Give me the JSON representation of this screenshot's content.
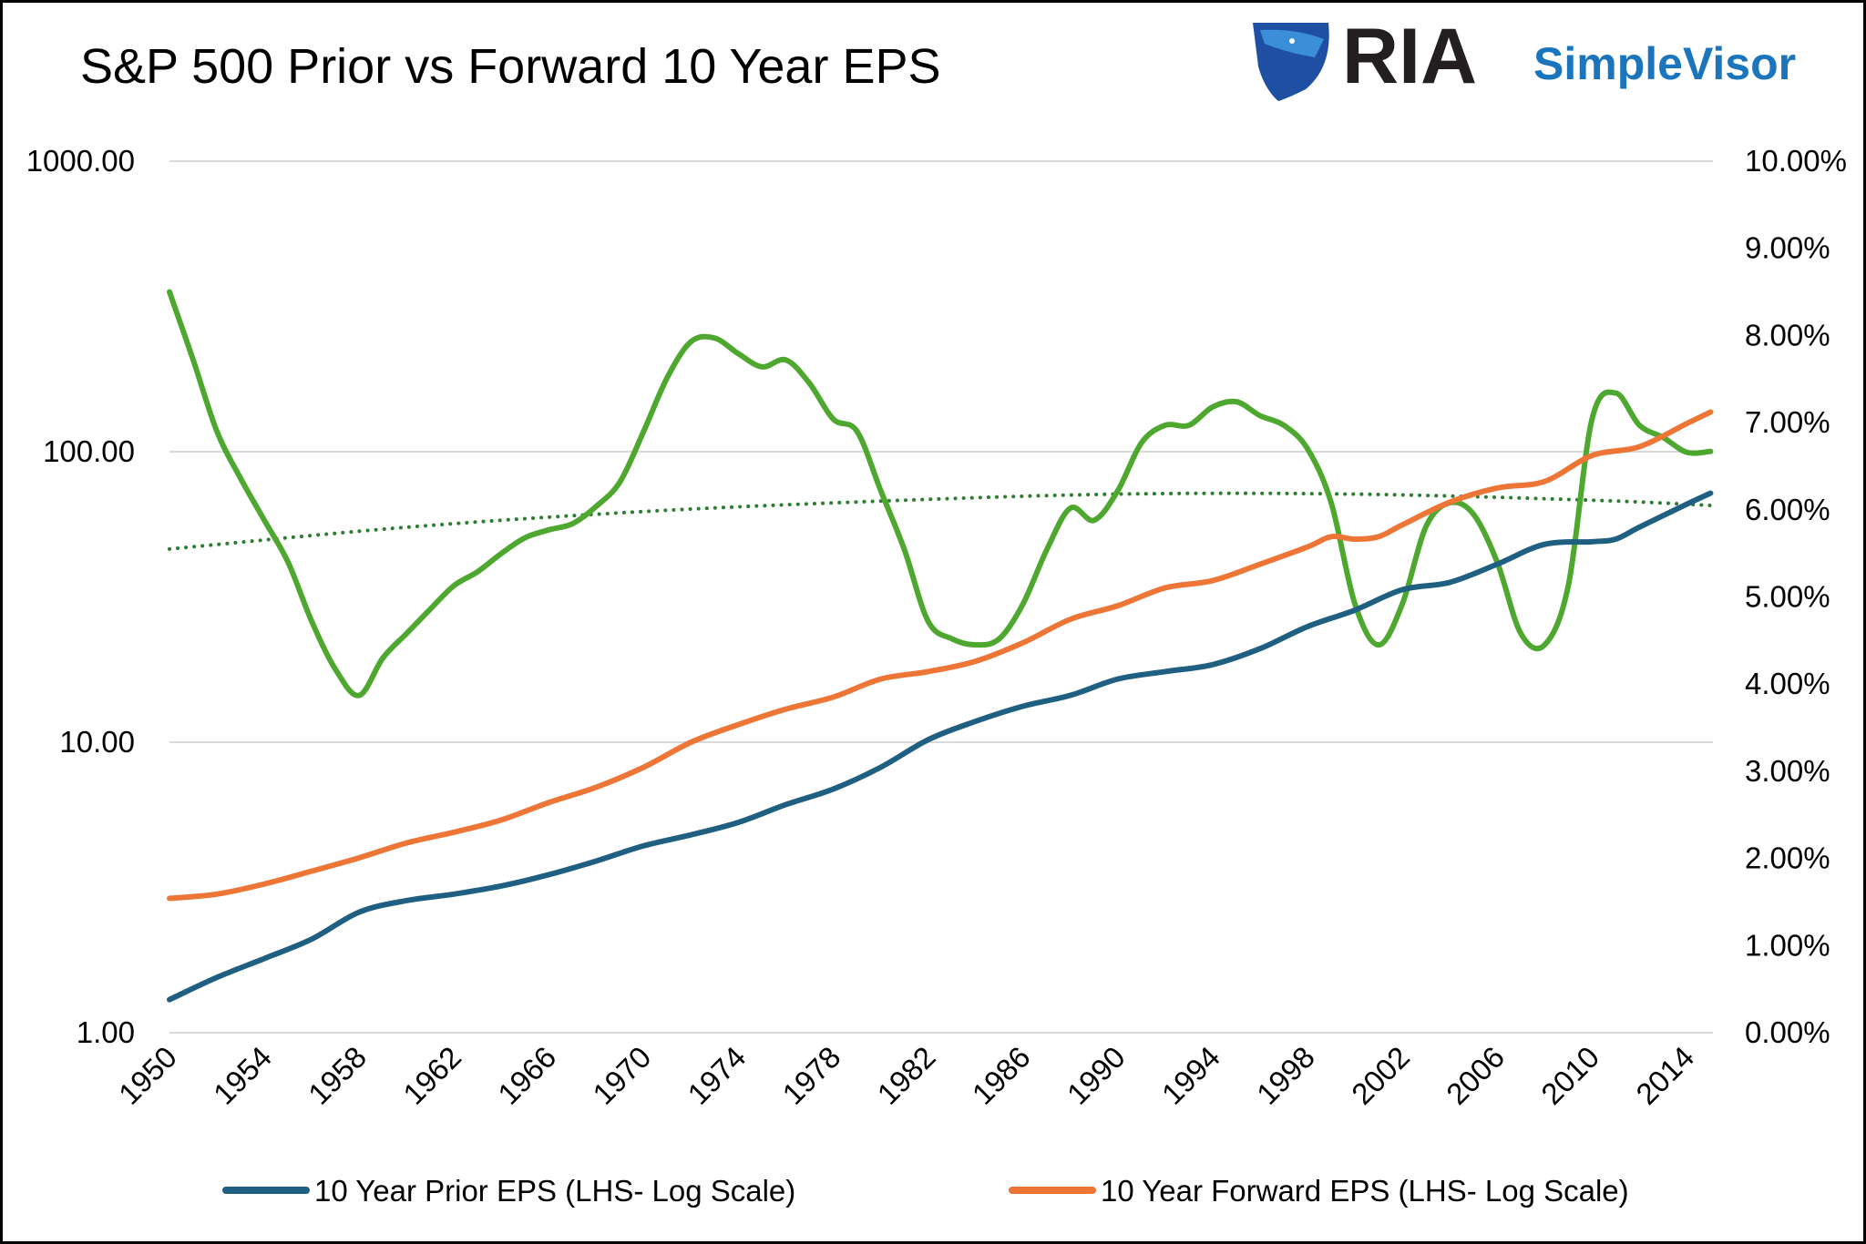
{
  "title": "S&P 500 Prior vs Forward 10 Year EPS",
  "logo": {
    "text_main": "RIA",
    "text_sub": "SimpleVisor",
    "colors": {
      "main": "#231f20",
      "sub": "#1b75bc",
      "shield": "#1e4fa3"
    }
  },
  "chart_data": {
    "type": "line",
    "title": "S&P 500 Prior vs Forward 10 Year EPS",
    "x_range": [
      1950,
      2015
    ],
    "x_ticks": [
      "1950",
      "1954",
      "1958",
      "1962",
      "1966",
      "1970",
      "1974",
      "1978",
      "1982",
      "1986",
      "1990",
      "1994",
      "1998",
      "2002",
      "2006",
      "2010",
      "2014"
    ],
    "y_left": {
      "scale": "log",
      "range": [
        1,
        1000
      ],
      "ticks": [
        "1.00",
        "10.00",
        "100.00",
        "1000.00"
      ]
    },
    "y_right": {
      "scale": "linear",
      "range": [
        0,
        10
      ],
      "ticks": [
        "0.00%",
        "1.00%",
        "2.00%",
        "3.00%",
        "4.00%",
        "5.00%",
        "6.00%",
        "7.00%",
        "8.00%",
        "9.00%",
        "10.00%"
      ]
    },
    "grid": true,
    "legend_position": "bottom",
    "series": [
      {
        "name": "10 Year Prior EPS (LHS- Log Scale)",
        "axis": "left",
        "color": "#1f5f82",
        "x": [
          1950,
          1952,
          1954,
          1956,
          1958,
          1960,
          1962,
          1964,
          1966,
          1968,
          1970,
          1972,
          1974,
          1976,
          1978,
          1980,
          1982,
          1984,
          1986,
          1988,
          1990,
          1992,
          1994,
          1996,
          1998,
          2000,
          2002,
          2004,
          2006,
          2008,
          2010,
          2011,
          2012,
          2014,
          2015
        ],
        "y": [
          1.3,
          1.55,
          1.8,
          2.1,
          2.6,
          2.85,
          3.0,
          3.2,
          3.5,
          3.9,
          4.4,
          4.8,
          5.3,
          6.1,
          6.9,
          8.2,
          10.2,
          11.8,
          13.3,
          14.5,
          16.5,
          17.5,
          18.5,
          21,
          25,
          28.5,
          33.5,
          35.5,
          41,
          48,
          49,
          50,
          55,
          66,
          72
        ]
      },
      {
        "name": "10 Year Forward EPS (LHS- Log Scale)",
        "axis": "left",
        "color": "#ed7535",
        "x": [
          1950,
          1952,
          1954,
          1956,
          1958,
          1960,
          1962,
          1964,
          1966,
          1968,
          1970,
          1972,
          1974,
          1976,
          1978,
          1980,
          1982,
          1984,
          1986,
          1988,
          1990,
          1992,
          1994,
          1996,
          1998,
          1999,
          2000,
          2001,
          2002,
          2004,
          2006,
          2008,
          2010,
          2012,
          2014,
          2015
        ],
        "y": [
          2.9,
          3.0,
          3.25,
          3.6,
          4.0,
          4.5,
          4.9,
          5.4,
          6.2,
          7.0,
          8.2,
          10.0,
          11.5,
          13.0,
          14.3,
          16.5,
          17.5,
          19,
          22,
          26.5,
          29.5,
          34,
          36,
          41,
          47,
          51,
          50,
          51,
          56,
          67,
          75,
          79,
          97,
          104,
          125,
          137
        ]
      },
      {
        "axis": "right",
        "color": "#4ea72e",
        "x": [
          1950,
          1951,
          1952,
          1953,
          1954,
          1955,
          1956,
          1957,
          1958,
          1959,
          1960,
          1961,
          1962,
          1963,
          1964,
          1965,
          1966,
          1967,
          1968,
          1969,
          1970,
          1971,
          1972,
          1973,
          1974,
          1975,
          1976,
          1977,
          1978,
          1979,
          1980,
          1981,
          1982,
          1983,
          1984,
          1985,
          1986,
          1987,
          1988,
          1989,
          1990,
          1991,
          1992,
          1993,
          1994,
          1995,
          1996,
          1997,
          1998,
          1999,
          2000,
          2001,
          2002,
          2003,
          2004,
          2005,
          2006,
          2007,
          2008,
          2009,
          2010,
          2011,
          2012,
          2013,
          2014,
          2015
        ],
        "y": [
          8.5,
          7.72,
          6.9,
          6.36,
          5.88,
          5.4,
          4.72,
          4.17,
          3.87,
          4.3,
          4.58,
          4.86,
          5.13,
          5.29,
          5.5,
          5.68,
          5.77,
          5.84,
          6.04,
          6.32,
          6.9,
          7.52,
          7.93,
          7.97,
          7.79,
          7.64,
          7.72,
          7.45,
          7.04,
          6.9,
          6.22,
          5.54,
          4.72,
          4.52,
          4.45,
          4.52,
          4.92,
          5.54,
          6.02,
          5.88,
          6.22,
          6.77,
          6.97,
          6.97,
          7.18,
          7.24,
          7.08,
          6.97,
          6.7,
          6.08,
          4.92,
          4.45,
          4.92,
          5.81,
          6.08,
          5.95,
          5.4,
          4.58,
          4.45,
          5.13,
          7.04,
          7.34,
          6.97,
          6.83,
          6.66,
          6.67
        ]
      },
      {
        "axis": "right",
        "color": "#2e7d32",
        "style": "dotted",
        "kind": "trendline",
        "x": [
          1950,
          1960,
          1970,
          1980,
          1990,
          2000,
          2010,
          2015
        ],
        "y": [
          5.55,
          5.8,
          5.98,
          6.1,
          6.18,
          6.18,
          6.11,
          6.05
        ]
      }
    ]
  }
}
